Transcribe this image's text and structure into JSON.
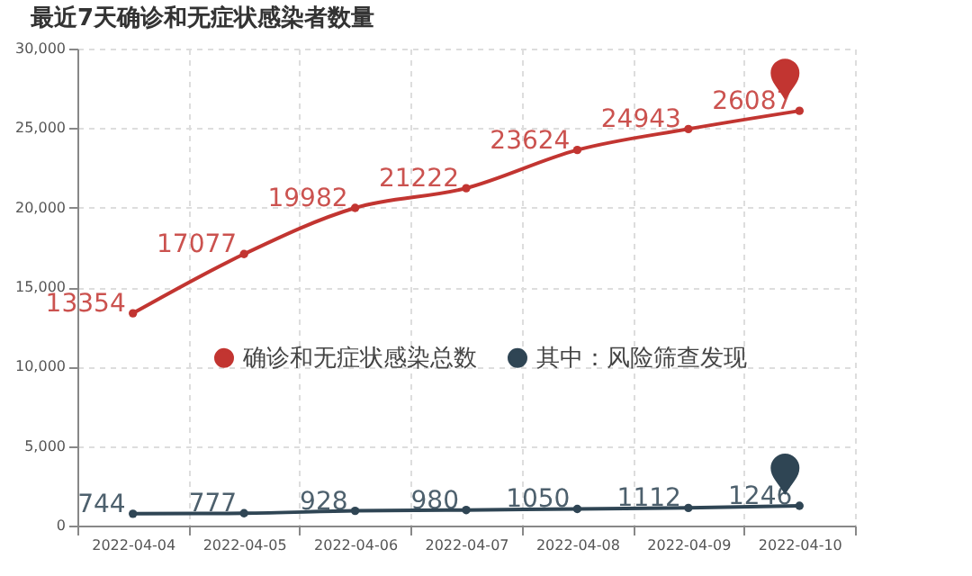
{
  "chart_data": {
    "type": "line",
    "title": "最近7天确诊和无症状感染者数量",
    "categories": [
      "2022-04-04",
      "2022-04-05",
      "2022-04-06",
      "2022-04-07",
      "2022-04-08",
      "2022-04-09",
      "2022-04-10"
    ],
    "series": [
      {
        "name": "确诊和无症状感染总数",
        "color": "#c23531",
        "values": [
          13354,
          17077,
          19982,
          21222,
          23624,
          24943,
          26087
        ]
      },
      {
        "name": "其中：风险筛查发现",
        "color": "#2f4554",
        "values": [
          744,
          777,
          928,
          980,
          1050,
          1112,
          1246
        ]
      }
    ],
    "ylim": [
      0,
      30000
    ],
    "yticks": [
      0,
      {
        "value": 5000,
        "label": "5,000"
      },
      {
        "value": 10000,
        "label": "10,000"
      },
      {
        "value": 15000,
        "label": "15,000"
      },
      {
        "value": 20000,
        "label": "20,000"
      },
      {
        "value": 25000,
        "label": "25,000"
      },
      {
        "value": 30000,
        "label": "30,000"
      }
    ],
    "grid": true,
    "legend": "center",
    "marker": "circle",
    "line_style": "solid",
    "data_labels": true
  }
}
